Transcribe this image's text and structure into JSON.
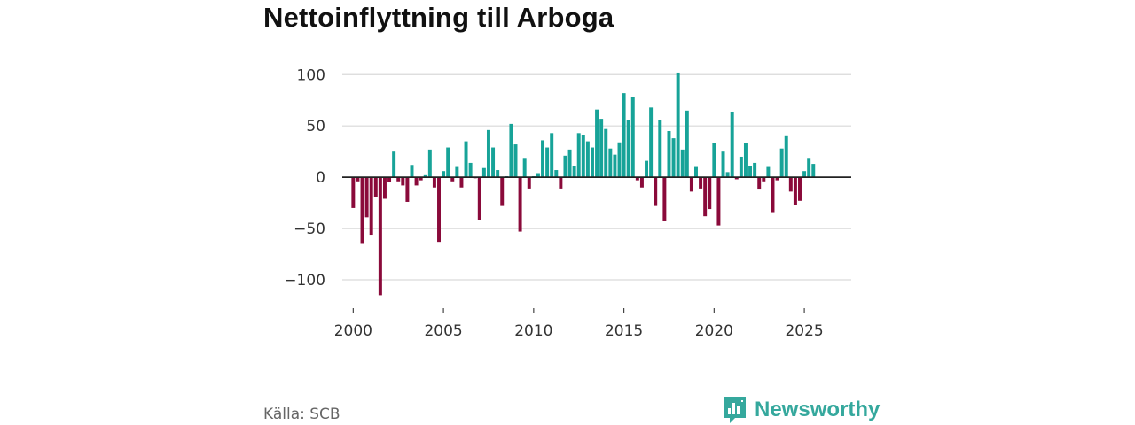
{
  "title": "Nettoinflyttning till Arboga",
  "source": "Källa: SCB",
  "brand": {
    "name": "Newsworthy",
    "icon": "bar-chart-logo-icon"
  },
  "colors": {
    "positive": "#17a398",
    "negative": "#8a0a3a",
    "grid": "#d9d9d9",
    "zero": "#222222",
    "brand": "#35a89d"
  },
  "chart_data": {
    "type": "bar",
    "title": "Nettoinflyttning till Arboga",
    "xlabel": "",
    "ylabel": "",
    "ylim": [
      -125,
      108
    ],
    "xlim": [
      1999.0,
      2027.6
    ],
    "yticks": [
      100,
      50,
      0,
      -50,
      -100
    ],
    "ytick_labels": [
      "100",
      "50",
      "0",
      "−50",
      "−100"
    ],
    "xticks": [
      2000,
      2005,
      2010,
      2015,
      2020,
      2025
    ],
    "xtick_labels": [
      "2000",
      "2005",
      "2010",
      "2015",
      "2020",
      "2025"
    ],
    "frequency": "quarterly",
    "start": 2000.0,
    "step": 0.25,
    "values": [
      -30,
      -4,
      -65,
      -39,
      -56,
      -19,
      -115,
      -21,
      -5,
      25,
      -4,
      -8,
      -24,
      12,
      -8,
      -3,
      2,
      27,
      -10,
      -63,
      6,
      29,
      -4,
      10,
      -10,
      35,
      14,
      -1,
      -42,
      9,
      46,
      29,
      7,
      -28,
      1,
      52,
      32,
      -53,
      18,
      -11,
      1,
      4,
      36,
      29,
      43,
      7,
      -11,
      21,
      27,
      11,
      43,
      41,
      35,
      29,
      66,
      57,
      47,
      28,
      22,
      34,
      82,
      56,
      78,
      -3,
      -10,
      16,
      68,
      -28,
      56,
      -43,
      45,
      38,
      102,
      27,
      65,
      -14,
      10,
      -11,
      -38,
      -31,
      33,
      -47,
      25,
      5,
      64,
      -2,
      20,
      33,
      11,
      14,
      -12,
      -4,
      10,
      -34,
      -3,
      28,
      40,
      -14,
      -27,
      -23,
      6,
      18,
      13
    ]
  }
}
